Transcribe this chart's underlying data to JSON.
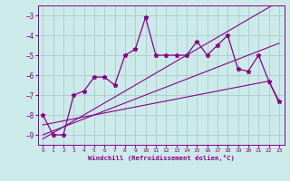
{
  "xlabel": "Windchill (Refroidissement éolien,°C)",
  "bg_color": "#cceaea",
  "grid_color": "#aacccc",
  "line_color": "#880088",
  "ylim": [
    -9.5,
    -2.5
  ],
  "xlim": [
    -0.5,
    23.5
  ],
  "yticks": [
    -9,
    -8,
    -7,
    -6,
    -5,
    -4,
    -3
  ],
  "xticks": [
    0,
    1,
    2,
    3,
    4,
    5,
    6,
    7,
    8,
    9,
    10,
    11,
    12,
    13,
    14,
    15,
    16,
    17,
    18,
    19,
    20,
    21,
    22,
    23
  ],
  "main_y": [
    -8.0,
    -9.0,
    -9.0,
    -7.0,
    -6.8,
    -6.1,
    -6.1,
    -6.5,
    -5.0,
    -4.7,
    -3.1,
    -5.0,
    -5.0,
    -5.0,
    -5.0,
    -4.3,
    -5.0,
    -4.5,
    -4.0,
    -5.7,
    -5.8,
    -5.0,
    -6.3,
    -7.3
  ],
  "smooth1_y": [
    -9.0,
    -8.8,
    -8.6,
    -8.4,
    -8.2,
    -8.0,
    -7.8,
    -7.6,
    -7.4,
    -7.2,
    -7.0,
    -6.8,
    -6.6,
    -6.4,
    -6.2,
    -6.0,
    -5.8,
    -5.6,
    -5.4,
    -5.2,
    -5.0,
    -4.8,
    -4.6,
    -4.4
  ],
  "smooth2_y": [
    -9.2,
    -8.9,
    -8.6,
    -8.3,
    -8.0,
    -7.7,
    -7.4,
    -7.1,
    -6.8,
    -6.5,
    -6.2,
    -5.9,
    -5.6,
    -5.3,
    -5.0,
    -4.7,
    -4.4,
    -4.1,
    -3.8,
    -3.5,
    -3.2,
    -2.9,
    -2.6,
    -2.3
  ],
  "smooth3_y": [
    -8.5,
    -8.4,
    -8.3,
    -8.2,
    -8.1,
    -8.0,
    -7.9,
    -7.8,
    -7.7,
    -7.6,
    -7.5,
    -7.4,
    -7.3,
    -7.2,
    -7.1,
    -7.0,
    -6.9,
    -6.8,
    -6.7,
    -6.6,
    -6.5,
    -6.4,
    -6.3,
    -7.4
  ]
}
